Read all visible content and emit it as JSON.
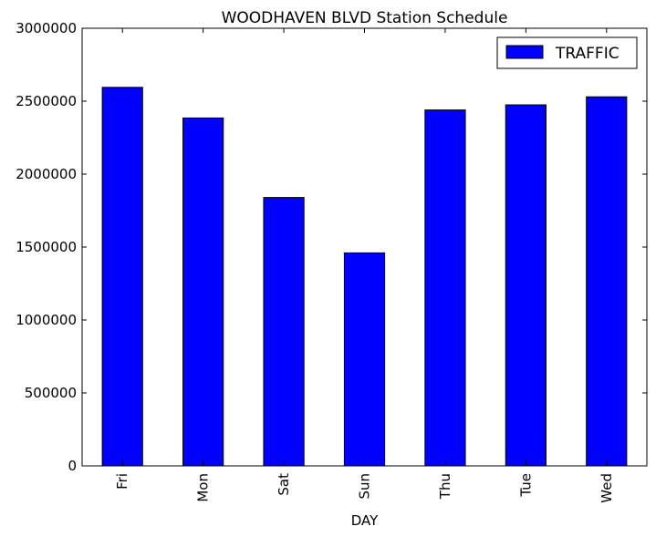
{
  "chart_data": {
    "type": "bar",
    "title": "WOODHAVEN BLVD Station Schedule",
    "xlabel": "DAY",
    "ylabel": "",
    "categories": [
      "Fri",
      "Mon",
      "Sat",
      "Sun",
      "Thu",
      "Tue",
      "Wed"
    ],
    "series": [
      {
        "name": "TRAFFIC",
        "values": [
          2595000,
          2385000,
          1840000,
          1460000,
          2440000,
          2475000,
          2530000
        ]
      }
    ],
    "ylim": [
      0,
      3000000
    ],
    "yticks": [
      0,
      500000,
      1000000,
      1500000,
      2000000,
      2500000,
      3000000
    ],
    "ytick_labels": [
      "0",
      "500000",
      "1000000",
      "1500000",
      "2000000",
      "2500000",
      "3000000"
    ],
    "grid": false,
    "legend_position": "top-right",
    "colors": {
      "bar": "#0000ff",
      "edge": "#000000"
    }
  }
}
